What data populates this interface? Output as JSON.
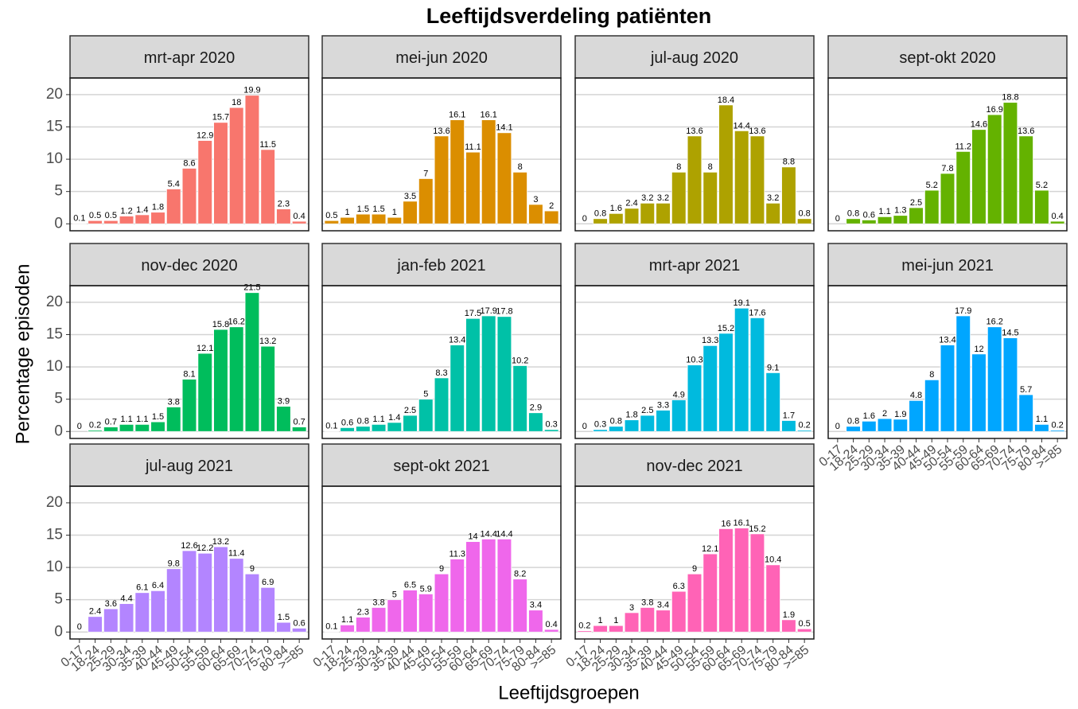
{
  "chart_data": {
    "type": "bar",
    "title": "Leeftijdsverdeling patiënten",
    "x_label": "Leeftijdsgroepen",
    "y_label": "Percentage episoden",
    "categories": [
      "0-17",
      "18-24",
      "25-29",
      "30-34",
      "35-39",
      "40-44",
      "45-49",
      "50-54",
      "55-59",
      "60-64",
      "65-69",
      "70-74",
      "75-79",
      "80-84",
      ">=85"
    ],
    "ylim": [
      -1.075,
      22.575
    ],
    "yticks": [
      0,
      5,
      10,
      15,
      20
    ],
    "grid": true,
    "series": [
      {
        "name": "mrt-apr 2020",
        "color": "#F8766D",
        "values": [
          0.1,
          0.5,
          0.5,
          1.2,
          1.4,
          1.8,
          5.4,
          8.6,
          12.9,
          15.7,
          18,
          19.9,
          11.5,
          2.3,
          0.4
        ]
      },
      {
        "name": "mei-jun 2020",
        "color": "#DB8E00",
        "values": [
          0.5,
          1,
          1.5,
          1.5,
          1,
          3.5,
          7,
          13.6,
          16.1,
          11.1,
          16.1,
          14.1,
          8,
          3,
          2
        ]
      },
      {
        "name": "jul-aug 2020",
        "color": "#AEA200",
        "values": [
          0,
          0.8,
          1.6,
          2.4,
          3.2,
          3.2,
          8,
          13.6,
          8,
          18.4,
          14.4,
          13.6,
          3.2,
          8.8,
          0.8
        ]
      },
      {
        "name": "sept-okt 2020",
        "color": "#64B200",
        "values": [
          0,
          0.8,
          0.6,
          1.1,
          1.3,
          2.5,
          5.2,
          7.8,
          11.2,
          14.6,
          16.9,
          18.8,
          13.6,
          5.2,
          0.4
        ]
      },
      {
        "name": "nov-dec 2020",
        "color": "#00BD5C",
        "values": [
          0,
          0.2,
          0.7,
          1.1,
          1.1,
          1.5,
          3.8,
          8.1,
          12.1,
          15.8,
          16.2,
          21.5,
          13.2,
          3.9,
          0.7
        ]
      },
      {
        "name": "jan-feb 2021",
        "color": "#00C1A7",
        "values": [
          0.1,
          0.6,
          0.8,
          1.1,
          1.4,
          2.5,
          5,
          8.3,
          13.4,
          17.5,
          17.9,
          17.8,
          10.2,
          2.9,
          0.3
        ]
      },
      {
        "name": "mrt-apr 2021",
        "color": "#00BADE",
        "values": [
          0,
          0.3,
          0.8,
          1.8,
          2.5,
          3.3,
          4.9,
          10.3,
          13.3,
          15.2,
          19.1,
          17.6,
          9.1,
          1.7,
          0.2
        ]
      },
      {
        "name": "mei-jun 2021",
        "color": "#00A6FF",
        "values": [
          0,
          0.8,
          1.6,
          2,
          1.9,
          4.8,
          8,
          13.4,
          17.9,
          12,
          16.2,
          14.5,
          5.7,
          1.1,
          0.2
        ]
      },
      {
        "name": "jul-aug 2021",
        "color": "#B385FF",
        "values": [
          0,
          2.4,
          3.6,
          4.4,
          6.1,
          6.4,
          9.8,
          12.6,
          12.2,
          13.2,
          11.4,
          9,
          6.9,
          1.5,
          0.6
        ]
      },
      {
        "name": "sept-okt 2021",
        "color": "#EF67EB",
        "values": [
          0.1,
          1.1,
          2.3,
          3.8,
          5,
          6.5,
          5.9,
          9,
          11.3,
          14,
          14.4,
          14.4,
          8.2,
          3.4,
          0.4
        ]
      },
      {
        "name": "nov-dec 2021",
        "color": "#FF63B6",
        "values": [
          0.2,
          1,
          1,
          3,
          3.8,
          3.4,
          6.3,
          9,
          12.1,
          16,
          16.1,
          15.2,
          10.4,
          1.9,
          0.5
        ]
      }
    ]
  }
}
